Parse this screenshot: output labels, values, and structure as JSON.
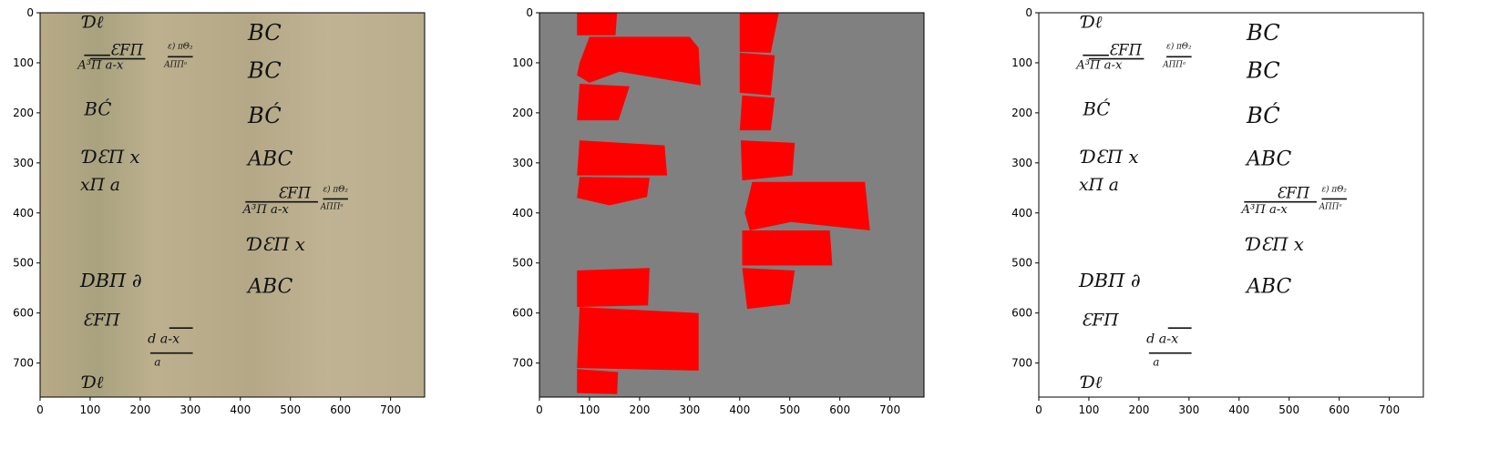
{
  "figure": {
    "panels": [
      {
        "id": "original",
        "description": "",
        "xlim": [
          0,
          768
        ],
        "ylim": [
          768,
          0
        ]
      },
      {
        "id": "mask",
        "description": "",
        "xlim": [
          0,
          768
        ],
        "ylim": [
          768,
          0
        ]
      },
      {
        "id": "binarized",
        "description": "",
        "xlim": [
          0,
          768
        ],
        "ylim": [
          768,
          0
        ]
      }
    ],
    "ticks": [
      0,
      100,
      200,
      300,
      400,
      500,
      600,
      700
    ],
    "colors": {
      "parchment": "#b7a98a",
      "mask_background": "#808080",
      "mask_region": "#ff0000",
      "ink": "#111111"
    }
  },
  "handwriting": {
    "left_column": [
      "Ɗℓ",
      "ƐFΠ",
      "A³Π a-x",
      "BĆ",
      "ƊƐΠ x",
      "xΠ a",
      "DBΠ ∂",
      "ƐFΠ",
      "d a-x",
      "a",
      "Ɗℓ"
    ],
    "right_column": [
      "BC",
      "BC",
      "BĆ",
      "ABC",
      "ƐFΠ",
      "A³Π a-x",
      "ƊƐΠ x",
      "ABC"
    ],
    "small_fraction_top": "ε) πΘ₂",
    "small_fraction_bottom": "AΠΠᵃ"
  },
  "chart_data": [
    {
      "type": "other",
      "title": "",
      "xlim": [
        0,
        768
      ],
      "ylim": [
        768,
        0
      ],
      "xticks": [
        0,
        100,
        200,
        300,
        400,
        500,
        600,
        700
      ],
      "yticks": [
        0,
        100,
        200,
        300,
        400,
        500,
        600,
        700
      ]
    },
    {
      "type": "other",
      "title": "",
      "xlim": [
        0,
        768
      ],
      "ylim": [
        768,
        0
      ],
      "regions": [
        [
          [
            75,
            0
          ],
          [
            155,
            0
          ],
          [
            152,
            45
          ],
          [
            75,
            45
          ]
        ],
        [
          [
            100,
            48
          ],
          [
            300,
            48
          ],
          [
            318,
            70
          ],
          [
            322,
            145
          ],
          [
            160,
            118
          ],
          [
            100,
            140
          ],
          [
            75,
            125
          ],
          [
            80,
            100
          ]
        ],
        [
          [
            80,
            142
          ],
          [
            180,
            147
          ],
          [
            158,
            215
          ],
          [
            75,
            215
          ]
        ],
        [
          [
            80,
            255
          ],
          [
            250,
            265
          ],
          [
            255,
            325
          ],
          [
            75,
            325
          ]
        ],
        [
          [
            80,
            328
          ],
          [
            220,
            330
          ],
          [
            215,
            368
          ],
          [
            140,
            385
          ],
          [
            75,
            370
          ]
        ],
        [
          [
            75,
            515
          ],
          [
            220,
            510
          ],
          [
            217,
            585
          ],
          [
            75,
            588
          ]
        ],
        [
          [
            80,
            588
          ],
          [
            318,
            600
          ],
          [
            318,
            715
          ],
          [
            75,
            710
          ]
        ],
        [
          [
            75,
            712
          ],
          [
            157,
            718
          ],
          [
            155,
            762
          ],
          [
            75,
            760
          ]
        ],
        [
          [
            400,
            0
          ],
          [
            478,
            0
          ],
          [
            462,
            80
          ],
          [
            400,
            78
          ]
        ],
        [
          [
            400,
            80
          ],
          [
            470,
            85
          ],
          [
            462,
            165
          ],
          [
            400,
            160
          ]
        ],
        [
          [
            405,
            165
          ],
          [
            470,
            170
          ],
          [
            462,
            235
          ],
          [
            400,
            235
          ]
        ],
        [
          [
            402,
            255
          ],
          [
            510,
            260
          ],
          [
            505,
            325
          ],
          [
            405,
            335
          ]
        ],
        [
          [
            425,
            338
          ],
          [
            650,
            338
          ],
          [
            660,
            435
          ],
          [
            502,
            418
          ],
          [
            470,
            425
          ],
          [
            420,
            435
          ],
          [
            410,
            400
          ]
        ],
        [
          [
            405,
            435
          ],
          [
            580,
            435
          ],
          [
            585,
            505
          ],
          [
            405,
            505
          ]
        ],
        [
          [
            405,
            510
          ],
          [
            510,
            515
          ],
          [
            500,
            582
          ],
          [
            415,
            592
          ]
        ]
      ]
    },
    {
      "type": "other",
      "title": "",
      "xlim": [
        0,
        768
      ],
      "ylim": [
        768,
        0
      ],
      "xticks": [
        0,
        100,
        200,
        300,
        400,
        500,
        600,
        700
      ],
      "yticks": [
        0,
        100,
        200,
        300,
        400,
        500,
        600,
        700
      ]
    }
  ]
}
